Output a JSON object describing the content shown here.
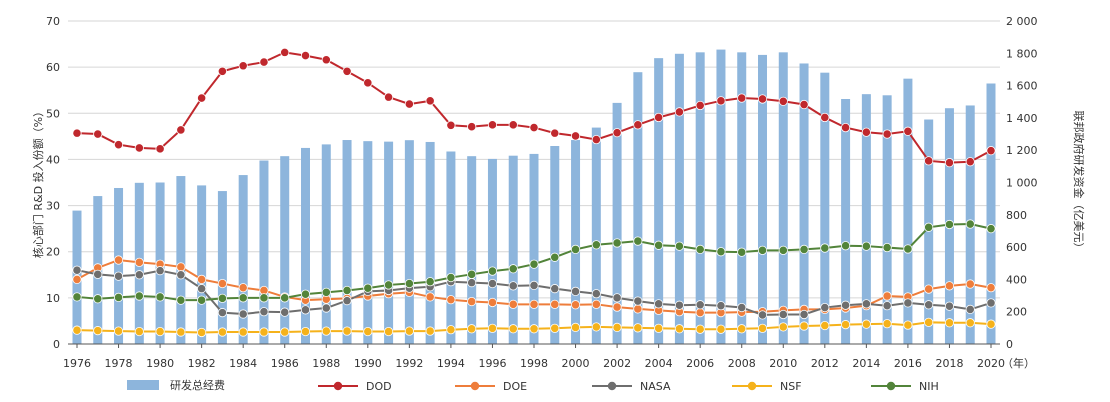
{
  "chart_data": {
    "type": "bar+line",
    "title": "",
    "ylabel_left": "核心部门 R&D 投入份额（%）",
    "ylabel_right": "联邦政府研发资金（亿美元）",
    "xlabel_unit": "（年）",
    "ylim_left": [
      0,
      70
    ],
    "ylim_right": [
      0,
      2000
    ],
    "yticks_left": [
      "0",
      "10",
      "20",
      "30",
      "40",
      "50",
      "60",
      "70"
    ],
    "yticks_right": [
      "0",
      "200",
      "400",
      "600",
      "800",
      "1 000",
      "1 200",
      "1 400",
      "1 600",
      "1 800",
      "2 000"
    ],
    "xtick_labels": [
      "1976",
      "1978",
      "1980",
      "1982",
      "1984",
      "1986",
      "1988",
      "1990",
      "1992",
      "1994",
      "1996",
      "1998",
      "2000",
      "2002",
      "2004",
      "2006",
      "2008",
      "2010",
      "2012",
      "2014",
      "2016",
      "2018",
      "2020"
    ],
    "x": [
      1976,
      1977,
      1978,
      1979,
      1980,
      1981,
      1982,
      1983,
      1984,
      1985,
      1986,
      1987,
      1988,
      1989,
      1990,
      1991,
      1992,
      1993,
      1994,
      1995,
      1996,
      1997,
      1998,
      1999,
      2000,
      2001,
      2002,
      2003,
      2004,
      2005,
      2006,
      2007,
      2008,
      2009,
      2010,
      2011,
      2012,
      2013,
      2014,
      2015,
      2016,
      2017,
      2018,
      2019,
      2020
    ],
    "grid": "horizontal",
    "legend_position": "bottom",
    "bar_series": {
      "name": "研发总经费",
      "axis": "right",
      "color": "#8db5dc",
      "values": [
        826,
        916,
        966,
        998,
        1000,
        1040,
        982,
        947,
        1046,
        1136,
        1163,
        1214,
        1236,
        1263,
        1256,
        1253,
        1262,
        1251,
        1192,
        1163,
        1146,
        1166,
        1177,
        1226,
        1263,
        1340,
        1493,
        1683,
        1770,
        1797,
        1806,
        1823,
        1806,
        1790,
        1806,
        1737,
        1680,
        1517,
        1547,
        1540,
        1643,
        1390,
        1460,
        1477,
        1613
      ]
    },
    "line_series": [
      {
        "name": "DOD",
        "axis": "left",
        "color": "#c0282d",
        "values": [
          45.7,
          45.5,
          43.2,
          42.5,
          42.3,
          46.4,
          53.3,
          59.1,
          60.3,
          61.1,
          63.2,
          62.5,
          61.6,
          59.1,
          56.6,
          53.5,
          52,
          52.7,
          47.4,
          47.1,
          47.5,
          47.5,
          46.9,
          45.7,
          45.1,
          44.3,
          45.8,
          47.5,
          49.1,
          50.3,
          51.7,
          52.7,
          53.3,
          53.1,
          52.6,
          51.9,
          49.1,
          46.9,
          45.9,
          45.5,
          46.1,
          39.7,
          39.3,
          39.5,
          41.9
        ]
      },
      {
        "name": "DOE",
        "axis": "left",
        "color": "#ee7d3b",
        "values": [
          14,
          16.5,
          18.2,
          17.7,
          17.3,
          16.7,
          14,
          13.1,
          12.2,
          11.6,
          10.2,
          9.5,
          9.7,
          9.9,
          10.4,
          10.9,
          11.2,
          10.2,
          9.6,
          9.2,
          9,
          8.6,
          8.6,
          8.6,
          8.5,
          8.6,
          8,
          7.6,
          7.3,
          7,
          6.8,
          6.8,
          6.9,
          7,
          7.3,
          7.5,
          7.5,
          7.8,
          8.3,
          10.4,
          10.2,
          11.9,
          12.6,
          13,
          12.2
        ]
      },
      {
        "name": "NASA",
        "axis": "left",
        "color": "#6e6e6e",
        "values": [
          16,
          15.1,
          14.7,
          15,
          15.9,
          15,
          12,
          6.8,
          6.5,
          7,
          6.9,
          7.4,
          7.8,
          9.4,
          11.4,
          11.6,
          12.1,
          12.4,
          13.5,
          13.3,
          13.1,
          12.6,
          12.7,
          12,
          11.4,
          10.9,
          10,
          9.3,
          8.7,
          8.4,
          8.5,
          8.3,
          7.9,
          6.3,
          6.4,
          6.4,
          7.9,
          8.4,
          8.7,
          8.3,
          8.9,
          8.5,
          8.2,
          7.5,
          8.9
        ]
      },
      {
        "name": "NSF",
        "axis": "left",
        "color": "#f5b21b",
        "values": [
          3,
          2.9,
          2.8,
          2.7,
          2.7,
          2.6,
          2.5,
          2.6,
          2.6,
          2.6,
          2.6,
          2.7,
          2.8,
          2.8,
          2.7,
          2.7,
          2.8,
          2.8,
          3.1,
          3.3,
          3.4,
          3.3,
          3.3,
          3.4,
          3.6,
          3.7,
          3.6,
          3.5,
          3.4,
          3.3,
          3.2,
          3.2,
          3.3,
          3.4,
          3.7,
          3.9,
          4,
          4.2,
          4.3,
          4.4,
          4.1,
          4.7,
          4.6,
          4.6,
          4.3
        ]
      },
      {
        "name": "NIH",
        "axis": "left",
        "color": "#52843a",
        "values": [
          10.2,
          9.8,
          10.1,
          10.4,
          10.2,
          9.5,
          9.5,
          9.9,
          10,
          10,
          10,
          10.8,
          11.2,
          11.6,
          12.1,
          12.8,
          13.1,
          13.5,
          14.4,
          15.1,
          15.8,
          16.3,
          17.3,
          18.8,
          20.5,
          21.5,
          21.9,
          22.3,
          21.4,
          21.2,
          20.5,
          20,
          19.9,
          20.3,
          20.3,
          20.5,
          20.8,
          21.3,
          21.2,
          20.9,
          20.6,
          25.3,
          25.9,
          26,
          25
        ]
      }
    ]
  }
}
